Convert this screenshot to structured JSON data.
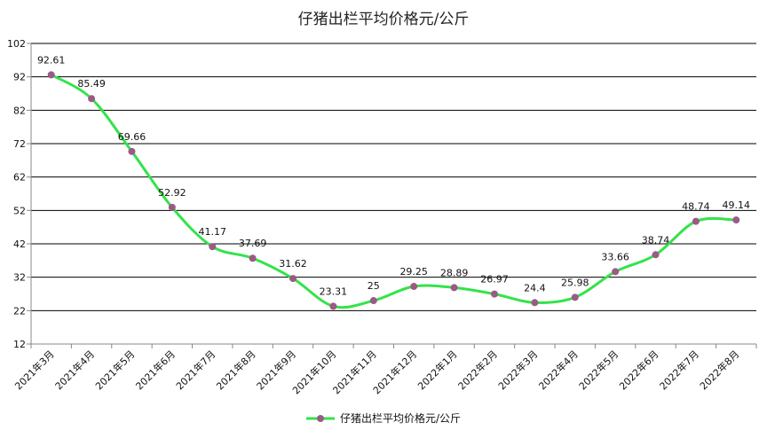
{
  "chart_data": {
    "type": "line",
    "title": "仔猪出栏平均价格元/公斤",
    "categories": [
      "2021年3月",
      "2021年4月",
      "2021年5月",
      "2021年6月",
      "2021年7月",
      "2021年8月",
      "2021年9月",
      "2021年10月",
      "2021年11月",
      "2021年12月",
      "2022年1月",
      "2022年2月",
      "2022年3月",
      "2022年4月",
      "2022年5月",
      "2022年6月",
      "2022年7月",
      "2022年8月"
    ],
    "series": [
      {
        "name": "仔猪出栏平均价格元/公斤",
        "values": [
          92.61,
          85.49,
          69.66,
          52.92,
          41.17,
          37.69,
          31.62,
          23.31,
          25,
          29.25,
          28.89,
          26.97,
          24.4,
          25.98,
          33.66,
          38.74,
          48.74,
          49.14
        ],
        "labels": [
          "92.61",
          "85.49",
          "69.66",
          "52.92",
          "41.17",
          "37.69",
          "31.62",
          "23.31",
          "25",
          "29.25",
          "28.89",
          "26.97",
          "24.4",
          "25.98",
          "33.66",
          "38.74",
          "48.74",
          "49.14"
        ]
      }
    ],
    "yticks": [
      "12",
      "22",
      "32",
      "42",
      "52",
      "62",
      "72",
      "82",
      "92",
      "102"
    ],
    "ylim": [
      12,
      102
    ],
    "grid": true,
    "legend": "bottom",
    "colors": {
      "line": "#33e34a",
      "marker": "#9b5a86",
      "grid": "#000000",
      "axis": "#888888"
    }
  }
}
